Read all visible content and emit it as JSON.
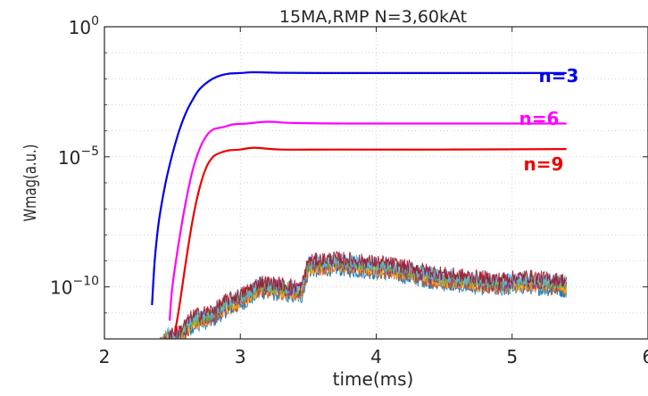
{
  "chart_data": {
    "type": "line",
    "title": "15MA,RMP N=3,60kAt",
    "xlabel": "time(ms)",
    "ylabel": "Wmag(a.u.)",
    "xlim": [
      2,
      6
    ],
    "ylim_log10": [
      -12,
      0
    ],
    "y_scale": "log",
    "grid": "dotted",
    "x_ticks": [
      {
        "value": 2,
        "label": "2"
      },
      {
        "value": 3,
        "label": "3"
      },
      {
        "value": 4,
        "label": "4"
      },
      {
        "value": 5,
        "label": "5"
      },
      {
        "value": 6,
        "label": "6"
      }
    ],
    "y_ticks": [
      {
        "value_log10": 0,
        "base": "10",
        "exp": "0"
      },
      {
        "value_log10": -5,
        "base": "10",
        "exp": "−5"
      },
      {
        "value_log10": -10,
        "base": "10",
        "exp": "−10"
      }
    ],
    "series": [
      {
        "name": "n=3",
        "color": "#0000ee",
        "points": [
          [
            2.35,
            -10.7
          ],
          [
            2.37,
            -9.0
          ],
          [
            2.4,
            -7.5
          ],
          [
            2.45,
            -6.0
          ],
          [
            2.5,
            -4.9
          ],
          [
            2.55,
            -4.0
          ],
          [
            2.6,
            -3.3
          ],
          [
            2.65,
            -2.8
          ],
          [
            2.7,
            -2.4
          ],
          [
            2.78,
            -2.05
          ],
          [
            2.85,
            -1.88
          ],
          [
            2.92,
            -1.8
          ],
          [
            3.0,
            -1.78
          ],
          [
            3.1,
            -1.75
          ],
          [
            3.3,
            -1.77
          ],
          [
            3.6,
            -1.78
          ],
          [
            4.0,
            -1.78
          ],
          [
            4.5,
            -1.78
          ],
          [
            5.0,
            -1.78
          ],
          [
            5.4,
            -1.78
          ]
        ]
      },
      {
        "name": "n=6",
        "color": "#ff00ff",
        "points": [
          [
            2.48,
            -11.3
          ],
          [
            2.5,
            -10.0
          ],
          [
            2.55,
            -8.2
          ],
          [
            2.6,
            -6.7
          ],
          [
            2.65,
            -5.5
          ],
          [
            2.7,
            -4.7
          ],
          [
            2.75,
            -4.2
          ],
          [
            2.8,
            -3.95
          ],
          [
            2.88,
            -3.85
          ],
          [
            2.95,
            -3.75
          ],
          [
            3.05,
            -3.72
          ],
          [
            3.2,
            -3.65
          ],
          [
            3.4,
            -3.7
          ],
          [
            3.8,
            -3.72
          ],
          [
            4.5,
            -3.72
          ],
          [
            5.4,
            -3.72
          ]
        ]
      },
      {
        "name": "n=9",
        "color": "#ee0000",
        "points": [
          [
            2.52,
            -11.7
          ],
          [
            2.55,
            -10.8
          ],
          [
            2.6,
            -9.0
          ],
          [
            2.65,
            -7.4
          ],
          [
            2.7,
            -6.2
          ],
          [
            2.75,
            -5.4
          ],
          [
            2.8,
            -5.0
          ],
          [
            2.85,
            -4.85
          ],
          [
            2.92,
            -4.75
          ],
          [
            3.0,
            -4.72
          ],
          [
            3.1,
            -4.65
          ],
          [
            3.3,
            -4.72
          ],
          [
            3.7,
            -4.72
          ],
          [
            4.5,
            -4.72
          ],
          [
            5.4,
            -4.7
          ]
        ]
      }
    ],
    "noise_series": {
      "count": 7,
      "colors": [
        "#0072bd",
        "#d95319",
        "#edb120",
        "#7e2f8e",
        "#77ac30",
        "#4dbeee",
        "#a2142f"
      ],
      "envelope": [
        [
          2.4,
          -12.0
        ],
        [
          2.55,
          -11.9
        ],
        [
          2.65,
          -11.3
        ],
        [
          2.8,
          -11.1
        ],
        [
          2.9,
          -10.7
        ],
        [
          3.0,
          -10.5
        ],
        [
          3.15,
          -10.0
        ],
        [
          3.3,
          -10.1
        ],
        [
          3.45,
          -10.2
        ],
        [
          3.5,
          -9.2
        ],
        [
          3.7,
          -9.1
        ],
        [
          3.9,
          -9.2
        ],
        [
          4.1,
          -9.3
        ],
        [
          4.3,
          -9.5
        ],
        [
          4.5,
          -9.7
        ],
        [
          4.7,
          -9.8
        ],
        [
          4.9,
          -9.9
        ],
        [
          5.1,
          -9.8
        ],
        [
          5.3,
          -9.9
        ],
        [
          5.4,
          -9.95
        ]
      ]
    }
  }
}
